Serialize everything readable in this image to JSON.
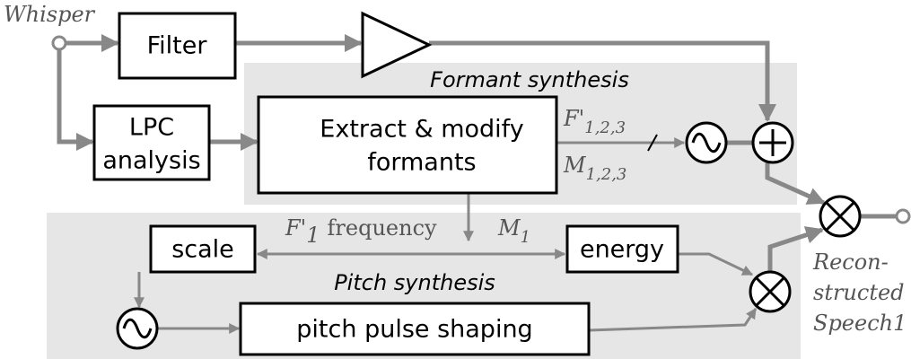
{
  "input_label": "Whisper",
  "blocks": {
    "filter": "Filter",
    "lpc": [
      "LPC",
      "analysis"
    ],
    "extract": [
      "Extract & modify",
      "formants"
    ],
    "scale": "scale",
    "energy": "energy",
    "pulse": "pitch pulse shaping"
  },
  "regions": {
    "formant": "Formant synthesis",
    "pitch": "Pitch synthesis"
  },
  "signals": {
    "formant_freq": {
      "symbol": "F'",
      "sub": "1,2,3"
    },
    "formant_mag": {
      "symbol": "M",
      "sub": "1,2,3"
    },
    "pitch_freq": {
      "symbol": "F'",
      "sub": "1",
      "text": "frequency"
    },
    "pitch_mag": {
      "symbol": "M",
      "sub": "1"
    }
  },
  "output_label": [
    "Recon-",
    "structed",
    "Speech1"
  ]
}
